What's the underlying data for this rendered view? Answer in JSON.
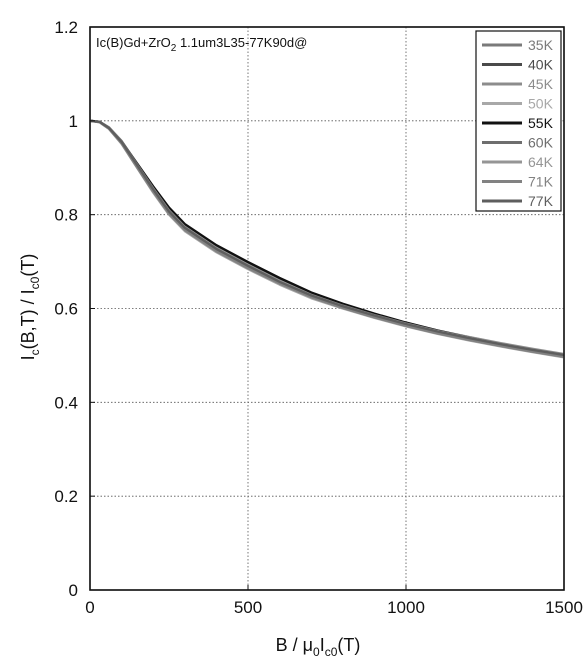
{
  "chart_data": {
    "type": "line",
    "annotation": {
      "prefix": "Ic(B)Gd+ZrO",
      "sub": "2",
      "suffix": " 1.1um3L35-77K90d@"
    },
    "xlabel": {
      "a": "B / μ",
      "b": "0",
      "c": "I",
      "d": "c0",
      "e": "(T)"
    },
    "ylabel": {
      "a": "I",
      "b": "c",
      "c": "(B,T) / I",
      "d": "c0",
      "e": "(T)"
    },
    "xlim": [
      0,
      1500
    ],
    "ylim": [
      0,
      1.2
    ],
    "xticks": [
      0,
      500,
      1000,
      1500
    ],
    "xtick_labels": [
      "0",
      "500",
      "1000",
      "1500"
    ],
    "yticks": [
      0,
      0.2,
      0.4,
      0.6,
      0.8,
      1,
      1.2
    ],
    "ytick_labels": [
      "0",
      "0.2",
      "0.4",
      "0.6",
      "0.8",
      "1",
      "1.2"
    ],
    "grid": "dotted",
    "legend_position": "top-right",
    "series": [
      {
        "name": "35K",
        "color": "#7a7a7a",
        "x": [
          0,
          30,
          60,
          100,
          150,
          200,
          250,
          300,
          400,
          500,
          600,
          700,
          800,
          900,
          1000,
          1100,
          1200,
          1300,
          1400,
          1500
        ],
        "y": [
          1.0,
          0.998,
          0.985,
          0.955,
          0.905,
          0.855,
          0.808,
          0.773,
          0.728,
          0.692,
          0.658,
          0.628,
          0.605,
          0.585,
          0.567,
          0.551,
          0.537,
          0.524,
          0.512,
          0.501
        ]
      },
      {
        "name": "40K",
        "color": "#4a4a4a",
        "x": [
          0,
          30,
          60,
          100,
          150,
          200,
          250,
          300,
          400,
          500,
          600,
          700,
          800,
          900,
          1000,
          1100,
          1200,
          1300,
          1400,
          1500
        ],
        "y": [
          1.0,
          0.998,
          0.984,
          0.953,
          0.902,
          0.851,
          0.805,
          0.77,
          0.725,
          0.689,
          0.655,
          0.626,
          0.603,
          0.583,
          0.565,
          0.549,
          0.535,
          0.522,
          0.51,
          0.499
        ]
      },
      {
        "name": "45K",
        "color": "#8c8c8c",
        "x": [
          0,
          30,
          60,
          100,
          150,
          200,
          250,
          300,
          400,
          500,
          600,
          700,
          800,
          900,
          1000,
          1100,
          1200,
          1300,
          1400,
          1500
        ],
        "y": [
          1.0,
          0.998,
          0.986,
          0.957,
          0.907,
          0.857,
          0.81,
          0.775,
          0.73,
          0.694,
          0.66,
          0.63,
          0.607,
          0.587,
          0.569,
          0.553,
          0.539,
          0.526,
          0.514,
          0.503
        ]
      },
      {
        "name": "50K",
        "color": "#a8a8a8",
        "x": [
          0,
          30,
          60,
          100,
          150,
          200,
          250,
          300,
          400,
          500,
          600,
          700,
          800,
          900,
          1000,
          1100,
          1200,
          1300,
          1400,
          1500
        ],
        "y": [
          1.0,
          0.997,
          0.983,
          0.951,
          0.899,
          0.847,
          0.8,
          0.765,
          0.72,
          0.684,
          0.651,
          0.622,
          0.6,
          0.58,
          0.562,
          0.546,
          0.532,
          0.519,
          0.507,
          0.496
        ]
      },
      {
        "name": "55K",
        "color": "#111111",
        "x": [
          0,
          30,
          60,
          100,
          150,
          200,
          250,
          300,
          400,
          500,
          600,
          700,
          800,
          900,
          1000,
          1100,
          1200,
          1300,
          1400,
          1500
        ],
        "y": [
          1.0,
          0.998,
          0.985,
          0.956,
          0.908,
          0.86,
          0.815,
          0.78,
          0.735,
          0.699,
          0.665,
          0.634,
          0.61,
          0.589,
          0.57,
          0.553,
          0.538,
          0.524,
          0.511,
          0.499
        ]
      },
      {
        "name": "60K",
        "color": "#6e6e6e",
        "x": [
          0,
          30,
          60,
          100,
          150,
          200,
          250,
          300,
          400,
          500,
          600,
          700,
          800,
          900,
          1000,
          1100,
          1200,
          1300,
          1400,
          1500
        ],
        "y": [
          1.0,
          0.998,
          0.984,
          0.954,
          0.904,
          0.853,
          0.806,
          0.771,
          0.726,
          0.69,
          0.656,
          0.627,
          0.604,
          0.584,
          0.566,
          0.55,
          0.536,
          0.523,
          0.511,
          0.5
        ]
      },
      {
        "name": "64K",
        "color": "#959595",
        "x": [
          0,
          30,
          60,
          100,
          150,
          200,
          250,
          300,
          400,
          500,
          600,
          700,
          800,
          900,
          1000,
          1100,
          1200,
          1300,
          1400,
          1500
        ],
        "y": [
          1.0,
          0.998,
          0.986,
          0.956,
          0.906,
          0.856,
          0.809,
          0.774,
          0.729,
          0.693,
          0.659,
          0.629,
          0.606,
          0.586,
          0.568,
          0.552,
          0.538,
          0.525,
          0.513,
          0.502
        ]
      },
      {
        "name": "71K",
        "color": "#828282",
        "x": [
          0,
          30,
          60,
          100,
          150,
          200,
          250,
          300,
          400,
          500,
          600,
          700,
          800,
          900,
          1000,
          1100,
          1200,
          1300,
          1400,
          1500
        ],
        "y": [
          1.0,
          0.997,
          0.983,
          0.952,
          0.9,
          0.849,
          0.802,
          0.767,
          0.722,
          0.686,
          0.653,
          0.624,
          0.601,
          0.581,
          0.563,
          0.547,
          0.533,
          0.52,
          0.508,
          0.497
        ]
      },
      {
        "name": "77K",
        "color": "#5e5e5e",
        "x": [
          0,
          30,
          60,
          100,
          150,
          200,
          250,
          300,
          400,
          500,
          600,
          700,
          800,
          900,
          1000,
          1100,
          1200,
          1300,
          1400,
          1500
        ],
        "y": [
          1.0,
          0.998,
          0.985,
          0.955,
          0.905,
          0.854,
          0.807,
          0.772,
          0.727,
          0.691,
          0.657,
          0.628,
          0.605,
          0.585,
          0.567,
          0.551,
          0.537,
          0.524,
          0.512,
          0.501
        ]
      }
    ]
  }
}
